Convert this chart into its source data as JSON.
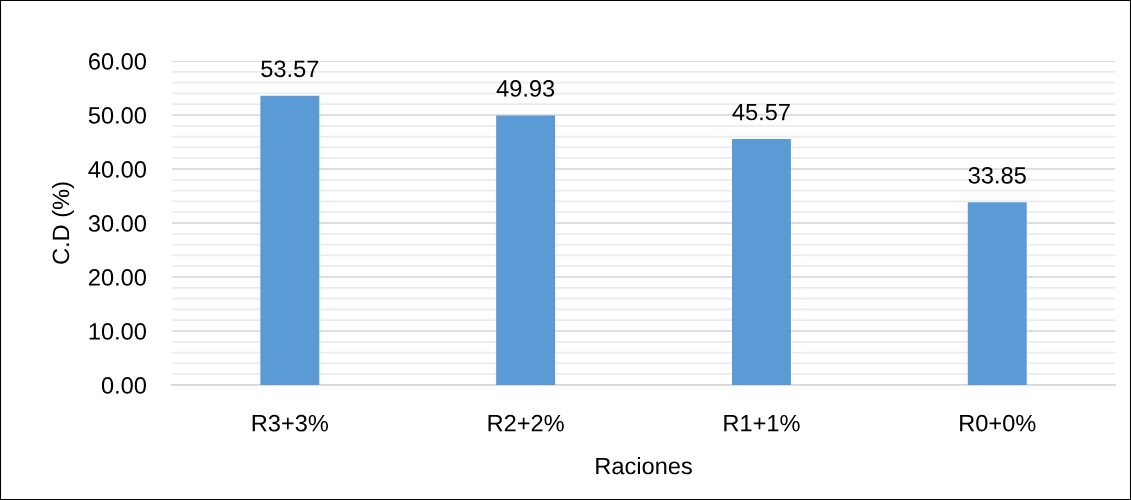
{
  "chart_data": {
    "type": "bar",
    "categories": [
      "R3+3%",
      "R2+2%",
      "R1+1%",
      "R0+0%"
    ],
    "values": [
      53.57,
      49.93,
      45.57,
      33.85
    ],
    "color": "#5b9bd5",
    "xlabel": "Raciones",
    "ylabel": "C.D (%)",
    "ylim": [
      0,
      60
    ],
    "yticks": [
      {
        "value": 0,
        "label": "0.00"
      },
      {
        "value": 2,
        "label": null
      },
      {
        "value": 4,
        "label": null
      },
      {
        "value": 6,
        "label": null
      },
      {
        "value": 8,
        "label": null
      },
      {
        "value": 10,
        "label": "10.00"
      },
      {
        "value": 12,
        "label": null
      },
      {
        "value": 14,
        "label": null
      },
      {
        "value": 16,
        "label": null
      },
      {
        "value": 18,
        "label": null
      },
      {
        "value": 20,
        "label": "20.00"
      },
      {
        "value": 22,
        "label": null
      },
      {
        "value": 24,
        "label": null
      },
      {
        "value": 26,
        "label": null
      },
      {
        "value": 28,
        "label": null
      },
      {
        "value": 30,
        "label": "30.00"
      },
      {
        "value": 32,
        "label": null
      },
      {
        "value": 34,
        "label": null
      },
      {
        "value": 36,
        "label": null
      },
      {
        "value": 38,
        "label": null
      },
      {
        "value": 40,
        "label": "40.00"
      },
      {
        "value": 42,
        "label": null
      },
      {
        "value": 44,
        "label": null
      },
      {
        "value": 46,
        "label": null
      },
      {
        "value": 48,
        "label": null
      },
      {
        "value": 50,
        "label": "50.00"
      },
      {
        "value": 52,
        "label": null
      },
      {
        "value": 54,
        "label": null
      },
      {
        "value": 56,
        "label": null
      },
      {
        "value": 58,
        "label": null
      },
      {
        "value": 60,
        "label": "60.00"
      }
    ],
    "grid": "y",
    "data_labels": true
  }
}
